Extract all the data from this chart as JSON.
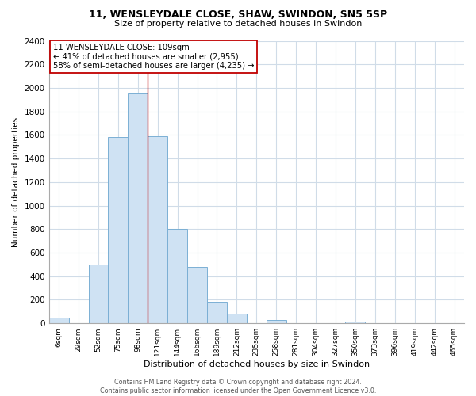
{
  "title_line1": "11, WENSLEYDALE CLOSE, SHAW, SWINDON, SN5 5SP",
  "title_line2": "Size of property relative to detached houses in Swindon",
  "xlabel": "Distribution of detached houses by size in Swindon",
  "ylabel": "Number of detached properties",
  "bar_labels": [
    "6sqm",
    "29sqm",
    "52sqm",
    "75sqm",
    "98sqm",
    "121sqm",
    "144sqm",
    "166sqm",
    "189sqm",
    "212sqm",
    "235sqm",
    "258sqm",
    "281sqm",
    "304sqm",
    "327sqm",
    "350sqm",
    "373sqm",
    "396sqm",
    "419sqm",
    "442sqm",
    "465sqm"
  ],
  "bar_values": [
    50,
    0,
    500,
    1580,
    1950,
    1590,
    800,
    480,
    185,
    80,
    0,
    25,
    0,
    0,
    0,
    18,
    0,
    0,
    0,
    0,
    0
  ],
  "bar_color": "#cfe2f3",
  "bar_edge_color": "#7bafd4",
  "vline_color": "#c00000",
  "vline_pos": 4.48,
  "ylim": [
    0,
    2400
  ],
  "yticks": [
    0,
    200,
    400,
    600,
    800,
    1000,
    1200,
    1400,
    1600,
    1800,
    2000,
    2200,
    2400
  ],
  "annotation_title": "11 WENSLEYDALE CLOSE: 109sqm",
  "annotation_line1": "← 41% of detached houses are smaller (2,955)",
  "annotation_line2": "58% of semi-detached houses are larger (4,235) →",
  "annotation_box_color": "#ffffff",
  "annotation_box_edge": "#c00000",
  "footer_line1": "Contains HM Land Registry data © Crown copyright and database right 2024.",
  "footer_line2": "Contains public sector information licensed under the Open Government Licence v3.0.",
  "bg_color": "#ffffff",
  "grid_color": "#d0dce8"
}
